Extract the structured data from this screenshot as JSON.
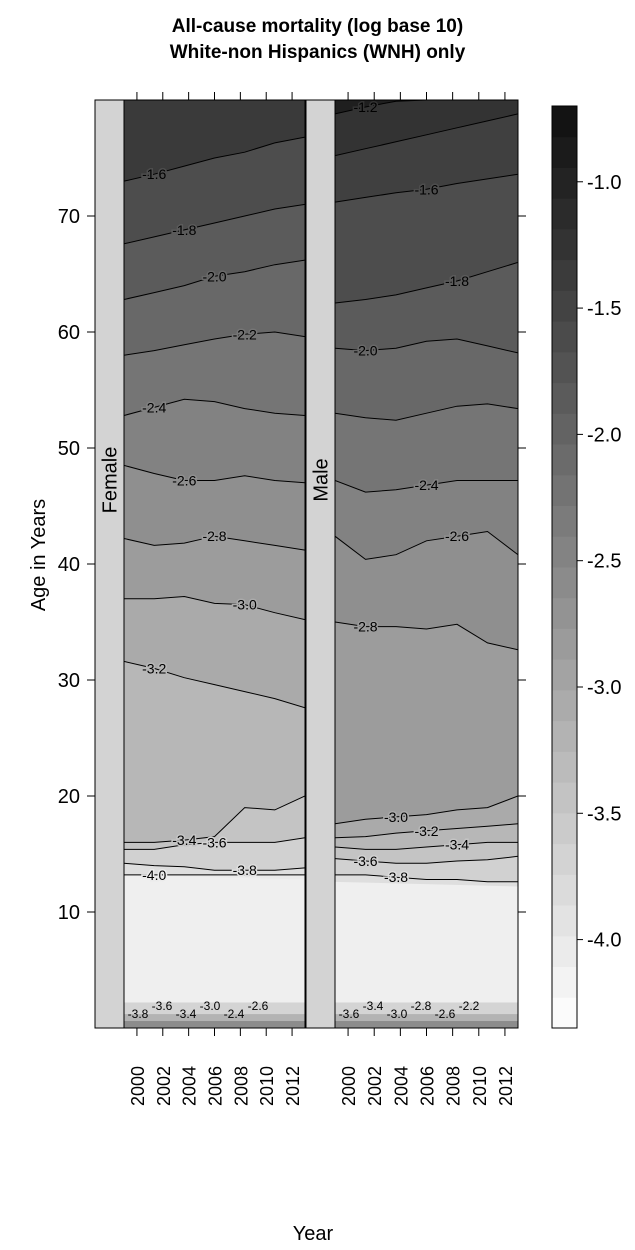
{
  "chart_data": {
    "type": "heatmap",
    "title": [
      "All-cause mortality (log base 10)",
      "White-non Hispanics (WNH) only"
    ],
    "xlabel": "Year",
    "ylabel": "Age in Years",
    "xlim": [
      1999,
      2013
    ],
    "ylim": [
      0,
      80
    ],
    "x_ticks": [
      2000,
      2002,
      2004,
      2006,
      2008,
      2010,
      2012
    ],
    "y_ticks": [
      10,
      20,
      30,
      40,
      50,
      60,
      70
    ],
    "colorkey": {
      "range": [
        -4.35,
        -0.7
      ],
      "ticks": [
        -1.0,
        -1.5,
        -2.0,
        -2.5,
        -3.0,
        -3.5,
        -4.0
      ],
      "tick_labels": [
        "-1.0",
        "-1.5",
        "-2.0",
        "-2.5",
        "-3.0",
        "-3.5",
        "-4.0"
      ],
      "palette": "grayscale, light = low mortality, dark = high mortality"
    },
    "panels": [
      {
        "strip": "Female",
        "contours": [
          {
            "level": -1.6,
            "label": "-1.6",
            "y": [
              73,
              73.6,
              74.3,
              75,
              75.5,
              76.3,
              76.8
            ]
          },
          {
            "level": -1.8,
            "label": "-1.8",
            "y": [
              67.6,
              68.2,
              68.8,
              69.4,
              70,
              70.6,
              71
            ]
          },
          {
            "level": -2.0,
            "label": "-2.0",
            "y": [
              62.8,
              63.4,
              64,
              64.8,
              65.2,
              65.8,
              66.2
            ]
          },
          {
            "level": -2.2,
            "label": "-2.2",
            "y": [
              58,
              58.4,
              58.9,
              59.4,
              59.8,
              60,
              59.6
            ]
          },
          {
            "level": -2.4,
            "label": "-2.4",
            "y": [
              52.8,
              53.5,
              54.2,
              54,
              53.4,
              53,
              52.8
            ]
          },
          {
            "level": -2.6,
            "label": "-2.6",
            "y": [
              48.5,
              47.8,
              47.2,
              47.2,
              47.6,
              47.2,
              47
            ]
          },
          {
            "level": -2.8,
            "label": "-2.8",
            "y": [
              42.2,
              41.6,
              41.8,
              42.4,
              42,
              41.6,
              41.2
            ]
          },
          {
            "level": -3.0,
            "label": "-3.0",
            "y": [
              37,
              37,
              37.2,
              36.6,
              36.5,
              35.8,
              35.2
            ]
          },
          {
            "level": -3.2,
            "label": "-3.2",
            "y": [
              31.6,
              31,
              30.2,
              29.6,
              29,
              28.4,
              27.6
            ]
          },
          {
            "level": -3.4,
            "label": "-3.4",
            "y": [
              16,
              16,
              16.2,
              16.5,
              19,
              18.8,
              20
            ]
          },
          {
            "level": -3.6,
            "label": "-3.6",
            "y": [
              15.4,
              15.4,
              15.8,
              16,
              16,
              16,
              16.4
            ]
          },
          {
            "level": -3.8,
            "label": "-3.8",
            "y": [
              14.2,
              14,
              13.9,
              13.6,
              13.6,
              13.6,
              13.8
            ]
          },
          {
            "level": -4.0,
            "label": "-4.0",
            "y": [
              13.2,
              13.2,
              13.2,
              13.2,
              13.2,
              13.2,
              13.2
            ]
          }
        ],
        "bottom_labels": [
          "-3.8",
          "-3.6",
          "-3.4",
          "-3.0",
          "-2.4",
          "-2.6"
        ]
      },
      {
        "strip": "Male",
        "contours": [
          {
            "level": -1.2,
            "label": "-1.2",
            "y": [
              78.8,
              79.4,
              79.9,
              80,
              80,
              80,
              80
            ]
          },
          {
            "level": -1.4,
            "label": "",
            "y": [
              75.2,
              75.8,
              76.4,
              77,
              77.6,
              78.2,
              78.8
            ]
          },
          {
            "level": -1.6,
            "label": "-1.6",
            "y": [
              71.2,
              71.6,
              72,
              72.3,
              72.8,
              73.2,
              73.6
            ]
          },
          {
            "level": -1.8,
            "label": "-1.8",
            "y": [
              62.5,
              62.8,
              63.2,
              63.8,
              64.4,
              65.2,
              66
            ]
          },
          {
            "level": -2.0,
            "label": "-2.0",
            "y": [
              58.6,
              58.4,
              58.6,
              59.2,
              59.4,
              58.8,
              58.2
            ]
          },
          {
            "level": -2.2,
            "label": "",
            "y": [
              53,
              52.6,
              52.4,
              53,
              53.6,
              53.8,
              53.4
            ]
          },
          {
            "level": -2.4,
            "label": "-2.4",
            "y": [
              47.2,
              46.2,
              46.4,
              46.8,
              47.2,
              47.2,
              47.2
            ]
          },
          {
            "level": -2.6,
            "label": "-2.6",
            "y": [
              42.4,
              40.4,
              40.8,
              42,
              42.4,
              42.8,
              40.8
            ]
          },
          {
            "level": -2.8,
            "label": "-2.8",
            "y": [
              35,
              34.6,
              34.6,
              34.4,
              34.8,
              33.2,
              32.6
            ]
          },
          {
            "level": -3.0,
            "label": "-3.0",
            "y": [
              17.6,
              18,
              18.2,
              18.4,
              18.8,
              19,
              20
            ]
          },
          {
            "level": -3.2,
            "label": "-3.2",
            "y": [
              16.4,
              16.5,
              16.8,
              17,
              17.2,
              17.4,
              17.6
            ]
          },
          {
            "level": -3.4,
            "label": "-3.4",
            "y": [
              15.6,
              15.4,
              15.4,
              15.6,
              15.8,
              16,
              16
            ]
          },
          {
            "level": -3.6,
            "label": "-3.6",
            "y": [
              14.6,
              14.4,
              14.2,
              14.2,
              14.4,
              14.5,
              14.8
            ]
          },
          {
            "level": -3.8,
            "label": "-3.8",
            "y": [
              13.2,
              13.2,
              13,
              12.8,
              12.8,
              12.6,
              12.6
            ]
          }
        ],
        "bottom_labels": [
          "-3.6",
          "-3.4",
          "-3.0",
          "-2.8",
          "-2.6",
          "-2.2"
        ]
      }
    ],
    "series": [
      {
        "name": "Female",
        "x": [
          1999,
          2001,
          2003,
          2005,
          2007,
          2009,
          2011,
          2013
        ],
        "levels_shown": [
          -1.6,
          -1.8,
          -2.0,
          -2.2,
          -2.4,
          -2.6,
          -2.8,
          -3.0,
          -3.2,
          -3.4,
          -3.6,
          -3.8,
          -4.0
        ]
      },
      {
        "name": "Male",
        "x": [
          1999,
          2001,
          2003,
          2005,
          2007,
          2009,
          2011,
          2013
        ],
        "levels_shown": [
          -1.2,
          -1.6,
          -1.8,
          -2.0,
          -2.4,
          -2.6,
          -2.8,
          -3.0,
          -3.2,
          -3.4,
          -3.6,
          -3.8
        ]
      }
    ],
    "grid": false,
    "legend": "right (color key)"
  }
}
